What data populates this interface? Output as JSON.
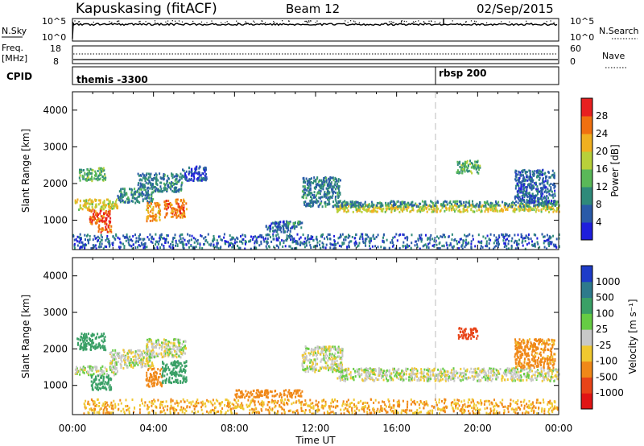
{
  "header": {
    "station": "Kapuskasing (fitACF)",
    "beam": "Beam 12",
    "date": "02/Sep/2015"
  },
  "top_panels": {
    "nsky_label": "N.Sky",
    "nsky_ticks": [
      "10^5",
      "10^0"
    ],
    "nsearch_label": "N.Search",
    "nsearch_ticks": [
      "10^5",
      "10^0"
    ],
    "freq_label_top": "Freq.",
    "freq_label_bottom": "[MHz]",
    "freq_ticks": [
      "18",
      "8"
    ],
    "nave_label": "Nave",
    "nave_ticks": [
      "60",
      "0"
    ],
    "cpid_label": "CPID",
    "cpid_segments": [
      {
        "label": "themis -3300",
        "start_hour": 0
      },
      {
        "label": "rbsp 200",
        "start_hour": 18.05
      }
    ]
  },
  "chart_data": [
    {
      "type": "heatmap",
      "title": "",
      "xlabel": "Time UT",
      "ylabel": "Slant Range [km]",
      "x_ticks": [
        "00:00",
        "04:00",
        "08:00",
        "12:00",
        "16:00",
        "20:00",
        "00:00"
      ],
      "xlim_hours": [
        0,
        24
      ],
      "ylim": [
        200,
        4500
      ],
      "y_ticks": [
        "1000",
        "2000",
        "3000",
        "4000"
      ],
      "colorbar": {
        "label": "Power [dB]",
        "ticks": [
          "4",
          "8",
          "12",
          "16",
          "20",
          "24",
          "28"
        ],
        "range": [
          0,
          30
        ],
        "colors": [
          "#1e1edc",
          "#2a5aa8",
          "#2f8a7a",
          "#5ab858",
          "#b8d03a",
          "#f0b020",
          "#f07010",
          "#e82020"
        ]
      },
      "scatter_regions": [
        {
          "hours": [
            0.1,
            2.2
          ],
          "range": [
            1300,
            1600
          ],
          "value": 18
        },
        {
          "hours": [
            0.3,
            1.6
          ],
          "range": [
            2100,
            2450
          ],
          "value": 12
        },
        {
          "hours": [
            0.8,
            1.9
          ],
          "range": [
            900,
            1300
          ],
          "value": 26
        },
        {
          "hours": [
            1.2,
            1.9
          ],
          "range": [
            700,
            900
          ],
          "value": 25
        },
        {
          "hours": [
            2.2,
            4.0
          ],
          "range": [
            1500,
            1900
          ],
          "value": 9
        },
        {
          "hours": [
            3.2,
            4.1
          ],
          "range": [
            1900,
            2300
          ],
          "value": 8
        },
        {
          "hours": [
            3.6,
            4.3
          ],
          "range": [
            1000,
            1500
          ],
          "value": 22
        },
        {
          "hours": [
            4.5,
            5.6
          ],
          "range": [
            1100,
            1600
          ],
          "value": 24
        },
        {
          "hours": [
            4.0,
            5.4
          ],
          "range": [
            1800,
            2300
          ],
          "value": 8
        },
        {
          "hours": [
            5.4,
            6.6
          ],
          "range": [
            2100,
            2500
          ],
          "value": 5
        },
        {
          "hours": [
            9.5,
            10.9
          ],
          "range": [
            700,
            1000
          ],
          "value": 6
        },
        {
          "hours": [
            10.5,
            11.3
          ],
          "range": [
            800,
            1000
          ],
          "value": 9
        },
        {
          "hours": [
            11.3,
            13.2
          ],
          "range": [
            1400,
            2200
          ],
          "value": 8
        },
        {
          "hours": [
            13.0,
            24.0
          ],
          "range": [
            1250,
            1450
          ],
          "value": 18
        },
        {
          "hours": [
            13.0,
            24.0
          ],
          "range": [
            1400,
            1550
          ],
          "value": 9
        },
        {
          "hours": [
            18.9,
            20.1
          ],
          "range": [
            2300,
            2650
          ],
          "value": 12
        },
        {
          "hours": [
            21.8,
            23.8
          ],
          "range": [
            1500,
            2400
          ],
          "value": 6
        },
        {
          "hours": [
            0.0,
            24.0
          ],
          "range": [
            250,
            650
          ],
          "value": 6
        }
      ]
    },
    {
      "type": "heatmap",
      "title": "",
      "xlabel": "Time UT",
      "ylabel": "Slant Range [km]",
      "x_ticks": [
        "00:00",
        "04:00",
        "08:00",
        "12:00",
        "16:00",
        "20:00",
        "00:00"
      ],
      "xlim_hours": [
        0,
        24
      ],
      "ylim": [
        200,
        4500
      ],
      "y_ticks": [
        "1000",
        "2000",
        "3000",
        "4000"
      ],
      "colorbar": {
        "label": "Velocity [m s⁻¹]",
        "ticks": [
          "1000",
          "500",
          "100",
          "25",
          "-25",
          "-100",
          "-500",
          "-1000"
        ],
        "colors": [
          "#1e3cc8",
          "#2e7a8c",
          "#3aa066",
          "#66cc44",
          "#c8c8c8",
          "#f0c830",
          "#f08818",
          "#e84418",
          "#e01414"
        ]
      },
      "scatter_regions": [
        {
          "hours": [
            0.1,
            2.2
          ],
          "range": [
            1300,
            1550
          ],
          "value": 0
        },
        {
          "hours": [
            0.2,
            1.6
          ],
          "range": [
            2000,
            2450
          ],
          "value": 200
        },
        {
          "hours": [
            0.9,
            1.9
          ],
          "range": [
            900,
            1300
          ],
          "value": 150
        },
        {
          "hours": [
            1.8,
            4.0
          ],
          "range": [
            1500,
            2000
          ],
          "value": 0
        },
        {
          "hours": [
            3.6,
            4.4
          ],
          "range": [
            1000,
            1500
          ],
          "value": -200
        },
        {
          "hours": [
            4.4,
            5.6
          ],
          "range": [
            1100,
            1700
          ],
          "value": 200
        },
        {
          "hours": [
            3.6,
            5.6
          ],
          "range": [
            1800,
            2300
          ],
          "value": 0
        },
        {
          "hours": [
            8.0,
            11.3
          ],
          "range": [
            700,
            900
          ],
          "value": -150
        },
        {
          "hours": [
            11.3,
            13.3
          ],
          "range": [
            1400,
            2100
          ],
          "value": 0
        },
        {
          "hours": [
            13.0,
            24.0
          ],
          "range": [
            1150,
            1500
          ],
          "value": 0
        },
        {
          "hours": [
            19.0,
            20.0
          ],
          "range": [
            2300,
            2600
          ],
          "value": -600
        },
        {
          "hours": [
            21.8,
            23.8
          ],
          "range": [
            1500,
            2300
          ],
          "value": -80
        },
        {
          "hours": [
            0.5,
            24.0
          ],
          "range": [
            250,
            650
          ],
          "value": -60
        }
      ]
    }
  ]
}
